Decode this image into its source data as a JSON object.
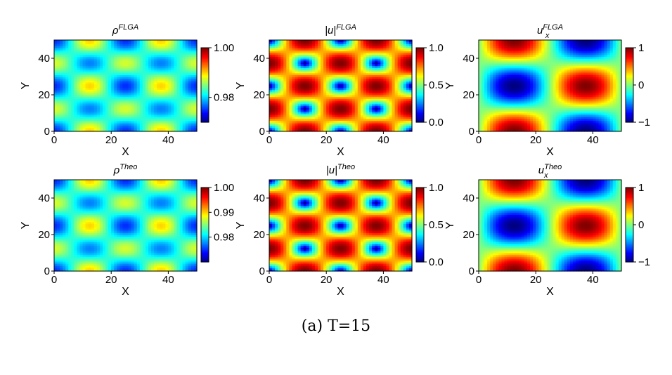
{
  "caption": "(a) T=15",
  "colormap": "jet",
  "chart_data": [
    {
      "type": "heatmap",
      "field": "rho",
      "title": "ρFLGA",
      "title_base": "ρ",
      "title_sup": "FLGA",
      "title_sub": "",
      "xlabel": "X",
      "ylabel": "Y",
      "xlim": [
        0,
        50
      ],
      "ylim": [
        0,
        50
      ],
      "xticks": [
        "0",
        "20",
        "40"
      ],
      "yticks": [
        "0",
        "20",
        "40"
      ],
      "colorbar": {
        "min": 0.97,
        "max": 1.0,
        "ticks": [
          "1.00",
          "0.98"
        ]
      }
    },
    {
      "type": "heatmap",
      "field": "speed",
      "title": "|u|FLGA",
      "title_base": "|u|",
      "title_sup": "FLGA",
      "title_sub": "",
      "xlabel": "X",
      "ylabel": "Y",
      "xlim": [
        0,
        50
      ],
      "ylim": [
        0,
        50
      ],
      "xticks": [
        "0",
        "20",
        "40"
      ],
      "yticks": [
        "0",
        "20",
        "40"
      ],
      "colorbar": {
        "min": 0.0,
        "max": 1.0,
        "ticks": [
          "1.0",
          "0.5",
          "0.0"
        ]
      }
    },
    {
      "type": "heatmap",
      "field": "ux",
      "title": "uxFLGA",
      "title_base": "u",
      "title_sup": "FLGA",
      "title_sub": "x",
      "xlabel": "X",
      "ylabel": "Y",
      "xlim": [
        0,
        50
      ],
      "ylim": [
        0,
        50
      ],
      "xticks": [
        "0",
        "20",
        "40"
      ],
      "yticks": [
        "0",
        "20",
        "40"
      ],
      "colorbar": {
        "min": -1,
        "max": 1,
        "ticks": [
          "1",
          "0",
          "−1"
        ]
      }
    },
    {
      "type": "heatmap",
      "field": "rho",
      "title": "ρTheo",
      "title_base": "ρ",
      "title_sup": "Theo",
      "title_sub": "",
      "xlabel": "X",
      "ylabel": "Y",
      "xlim": [
        0,
        50
      ],
      "ylim": [
        0,
        50
      ],
      "xticks": [
        "0",
        "20",
        "40"
      ],
      "yticks": [
        "0",
        "20",
        "40"
      ],
      "colorbar": {
        "min": 0.97,
        "max": 1.0,
        "ticks": [
          "1.00",
          "0.99",
          "0.98"
        ]
      }
    },
    {
      "type": "heatmap",
      "field": "speed",
      "title": "|u|Theo",
      "title_base": "|u|",
      "title_sup": "Theo",
      "title_sub": "",
      "xlabel": "X",
      "ylabel": "Y",
      "xlim": [
        0,
        50
      ],
      "ylim": [
        0,
        50
      ],
      "xticks": [
        "0",
        "20",
        "40"
      ],
      "yticks": [
        "0",
        "20",
        "40"
      ],
      "colorbar": {
        "min": 0.0,
        "max": 1.0,
        "ticks": [
          "1.0",
          "0.5",
          "0.0"
        ]
      }
    },
    {
      "type": "heatmap",
      "field": "ux",
      "title": "uxTheo",
      "title_base": "u",
      "title_sup": "Theo",
      "title_sub": "x",
      "xlabel": "X",
      "ylabel": "Y",
      "xlim": [
        0,
        50
      ],
      "ylim": [
        0,
        50
      ],
      "xticks": [
        "0",
        "20",
        "40"
      ],
      "yticks": [
        "0",
        "20",
        "40"
      ],
      "colorbar": {
        "min": -1,
        "max": 1,
        "ticks": [
          "1",
          "0",
          "−1"
        ]
      }
    }
  ]
}
